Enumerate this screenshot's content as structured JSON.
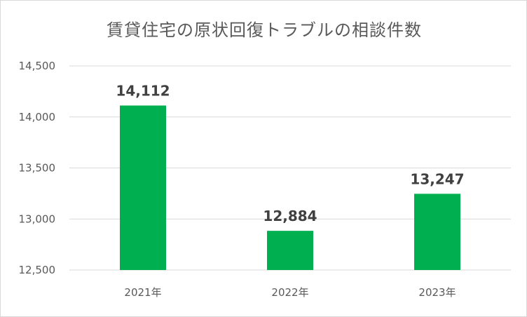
{
  "chart_data": {
    "type": "bar",
    "title": "賃貸住宅の原状回復トラブルの相談件数",
    "categories": [
      "2021年",
      "2022年",
      "2023年"
    ],
    "values": [
      14112,
      12884,
      13247
    ],
    "data_labels": [
      "14,112",
      "12,884",
      "13,247"
    ],
    "y_ticks": [
      12500,
      13000,
      13500,
      14000,
      14500
    ],
    "y_tick_labels": [
      "12,500",
      "13,000",
      "13,500",
      "14,000",
      "14,500"
    ],
    "ylim": [
      12500,
      14500
    ],
    "xlabel": "",
    "ylabel": "",
    "grid": true,
    "legend": "none",
    "bar_color": "#00b050",
    "grid_color": "#d9d9d9"
  }
}
